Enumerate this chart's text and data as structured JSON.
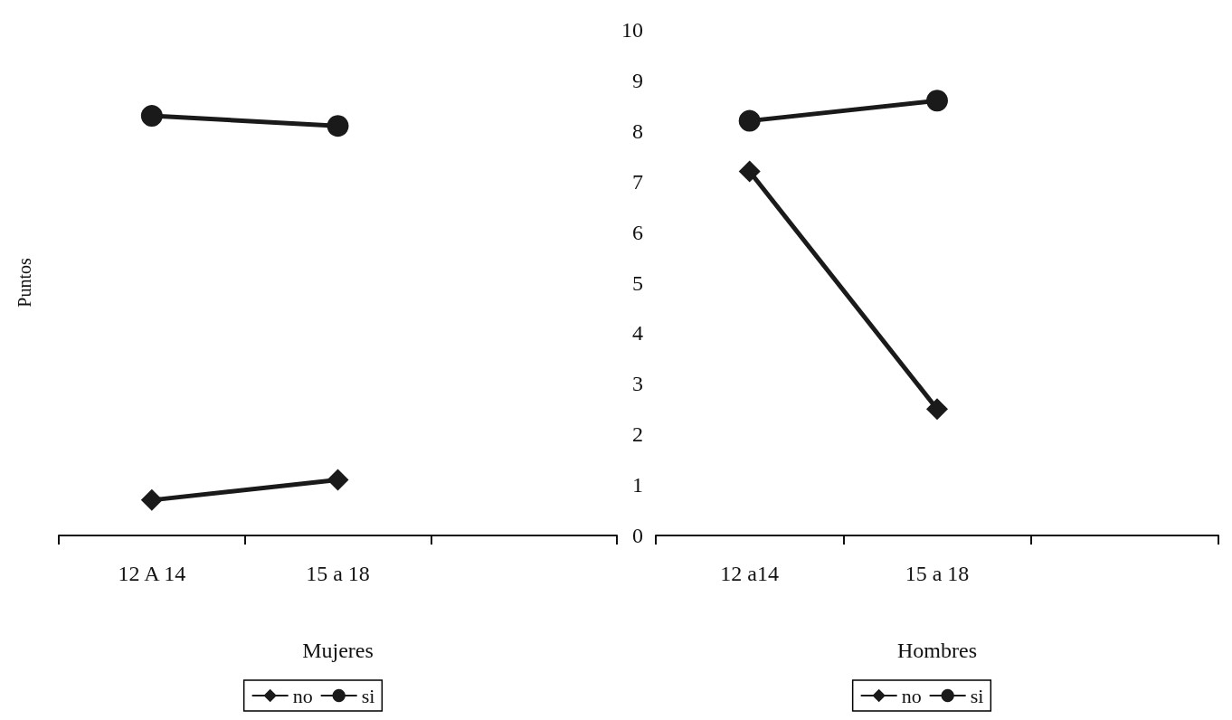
{
  "chart_data": [
    {
      "type": "line",
      "xlabel": "Mujeres",
      "ylabel": "Puntos",
      "categories": [
        "12 A 14",
        "15 a 18",
        null
      ],
      "ylim": [
        0,
        10
      ],
      "yticks": [
        0,
        1,
        2,
        3,
        4,
        5,
        6,
        7,
        8,
        9,
        10
      ],
      "tick_labels": "x",
      "legend": "bottom",
      "grid": false,
      "series": [
        {
          "name": "no",
          "color": "#1a1a1a",
          "marker": "diamond",
          "values": [
            0.7,
            1.1,
            null
          ]
        },
        {
          "name": "si",
          "color": "#1a1a1a",
          "marker": "circle",
          "values": [
            8.3,
            8.1,
            null
          ]
        }
      ]
    },
    {
      "type": "line",
      "xlabel": "Hombres",
      "categories": [
        "12 a14",
        "15 a 18",
        null
      ],
      "ylim": [
        0,
        10
      ],
      "yticks": [
        0,
        1,
        2,
        3,
        4,
        5,
        6,
        7,
        8,
        9,
        10
      ],
      "legend": "bottom",
      "grid": false,
      "series": [
        {
          "name": "no",
          "color": "#1a1a1a",
          "marker": "diamond",
          "values": [
            7.2,
            2.5,
            null
          ]
        },
        {
          "name": "si",
          "color": "#1a1a1a",
          "marker": "circle",
          "values": [
            8.2,
            8.6,
            null
          ]
        }
      ]
    }
  ]
}
